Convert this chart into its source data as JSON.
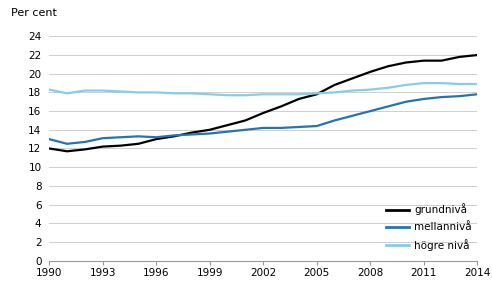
{
  "years": [
    1990,
    1991,
    1992,
    1993,
    1994,
    1995,
    1996,
    1997,
    1998,
    1999,
    2000,
    2001,
    2002,
    2003,
    2004,
    2005,
    2006,
    2007,
    2008,
    2009,
    2010,
    2011,
    2012,
    2013,
    2014
  ],
  "grundniva": [
    12.0,
    11.7,
    11.9,
    12.2,
    12.3,
    12.5,
    13.0,
    13.3,
    13.7,
    14.0,
    14.5,
    15.0,
    15.8,
    16.5,
    17.3,
    17.8,
    18.8,
    19.5,
    20.2,
    20.8,
    21.2,
    21.4,
    21.4,
    21.8,
    22.0
  ],
  "mellanniva": [
    13.0,
    12.5,
    12.7,
    13.1,
    13.2,
    13.3,
    13.2,
    13.4,
    13.5,
    13.6,
    13.8,
    14.0,
    14.2,
    14.2,
    14.3,
    14.4,
    15.0,
    15.5,
    16.0,
    16.5,
    17.0,
    17.3,
    17.5,
    17.6,
    17.8
  ],
  "hogre_niva": [
    18.3,
    17.9,
    18.2,
    18.2,
    18.1,
    18.0,
    18.0,
    17.9,
    17.9,
    17.8,
    17.7,
    17.7,
    17.8,
    17.8,
    17.8,
    17.9,
    18.0,
    18.2,
    18.3,
    18.5,
    18.8,
    19.0,
    19.0,
    18.9,
    18.9
  ],
  "grundniva_color": "#000000",
  "mellanniva_color": "#2673b4",
  "hogre_niva_color": "#88cce8",
  "ylabel": "Per cent",
  "ylim": [
    0,
    24
  ],
  "yticks": [
    0,
    2,
    4,
    6,
    8,
    10,
    12,
    14,
    16,
    18,
    20,
    22,
    24
  ],
  "xticks": [
    1990,
    1993,
    1996,
    1999,
    2002,
    2005,
    2008,
    2011,
    2014
  ],
  "legend_labels": [
    "grundnivå",
    "mellannivå",
    "högre nivå"
  ],
  "line_width": 1.6,
  "grid_color": "#c8c8c8",
  "background_color": "#ffffff"
}
